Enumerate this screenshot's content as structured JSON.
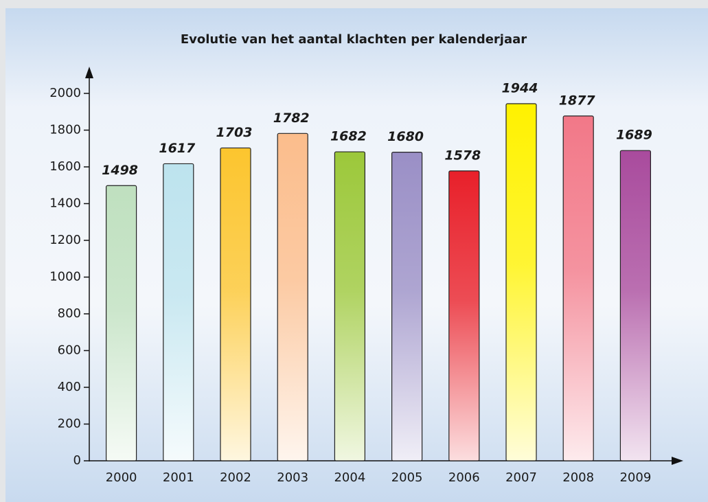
{
  "chart_data": {
    "type": "bar",
    "title": "Evolutie van het aantal klachten per kalenderjaar",
    "categories": [
      "2000",
      "2001",
      "2002",
      "2003",
      "2004",
      "2005",
      "2006",
      "2007",
      "2008",
      "2009"
    ],
    "values": [
      1498,
      1617,
      1703,
      1782,
      1682,
      1680,
      1578,
      1944,
      1877,
      1689
    ],
    "colors": [
      "#bfe0bf",
      "#bde3ee",
      "#fcc52e",
      "#fbbd8c",
      "#9cc83a",
      "#9a8fc6",
      "#e8202a",
      "#fff200",
      "#f27888",
      "#a94b9d"
    ],
    "ylim": [
      0,
      2000
    ],
    "yticks": [
      0,
      200,
      400,
      600,
      800,
      1000,
      1200,
      1400,
      1600,
      1800,
      2000
    ],
    "grid": false
  }
}
